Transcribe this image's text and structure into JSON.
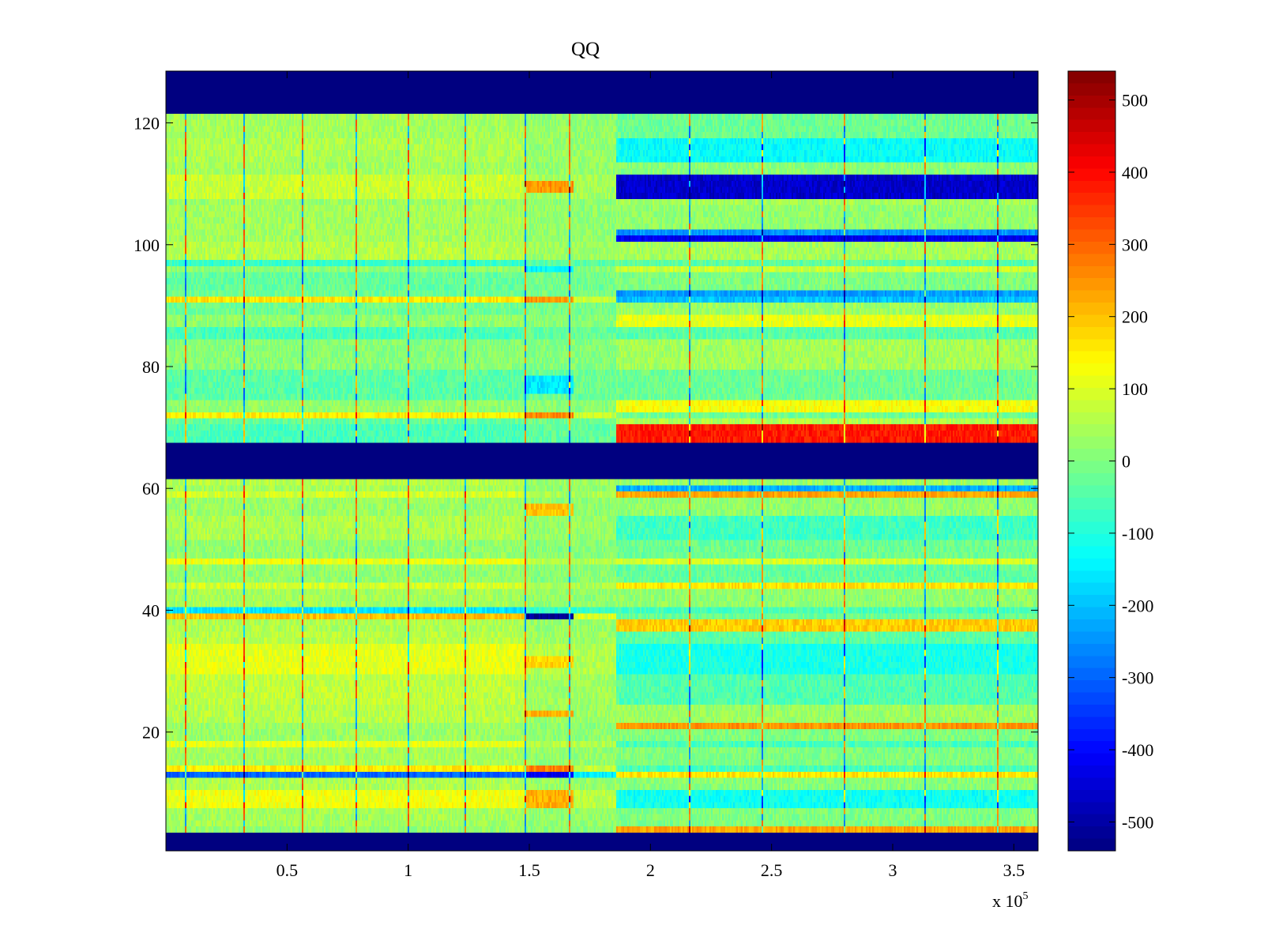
{
  "chart_data": {
    "type": "heatmap",
    "title": "QQ",
    "xlabel": "",
    "ylabel": "",
    "x_range": [
      0,
      360000
    ],
    "y_range": [
      0.5,
      128.5
    ],
    "rows": 128,
    "x_ticks": [
      {
        "value": 50000,
        "label": "0.5"
      },
      {
        "value": 100000,
        "label": "1"
      },
      {
        "value": 150000,
        "label": "1.5"
      },
      {
        "value": 200000,
        "label": "2"
      },
      {
        "value": 250000,
        "label": "2.5"
      },
      {
        "value": 300000,
        "label": "3"
      },
      {
        "value": 350000,
        "label": "3.5"
      }
    ],
    "x_multiplier": {
      "prefix": "x 10",
      "exponent": "5"
    },
    "y_ticks": [
      {
        "value": 20,
        "label": "20"
      },
      {
        "value": 40,
        "label": "40"
      },
      {
        "value": 60,
        "label": "60"
      },
      {
        "value": 80,
        "label": "80"
      },
      {
        "value": 100,
        "label": "100"
      },
      {
        "value": 120,
        "label": "120"
      }
    ],
    "colorbar": {
      "range": [
        -540,
        540
      ],
      "colormap": "jet",
      "ticks": [
        {
          "value": 500,
          "label": "500"
        },
        {
          "value": 400,
          "label": "400"
        },
        {
          "value": 300,
          "label": "300"
        },
        {
          "value": 200,
          "label": "200"
        },
        {
          "value": 100,
          "label": "100"
        },
        {
          "value": 0,
          "label": "0"
        },
        {
          "value": -100,
          "label": "-100"
        },
        {
          "value": -200,
          "label": "-200"
        },
        {
          "value": -300,
          "label": "-300"
        },
        {
          "value": -400,
          "label": "-400"
        },
        {
          "value": -500,
          "label": "-500"
        }
      ]
    },
    "regime_split_x": 186000,
    "spike_columns_x": [
      8000,
      32000,
      56000,
      78000,
      100000,
      123000,
      148000,
      166000,
      216000,
      246000,
      280000,
      313000,
      343000
    ],
    "masked_rows": [
      {
        "from": 1,
        "to": 3
      },
      {
        "from": 62,
        "to": 67
      },
      {
        "from": 122,
        "to": 128
      }
    ],
    "row_levels": [
      {
        "from": 4,
        "to": 4,
        "left": 20,
        "right": 230
      },
      {
        "from": 5,
        "to": 7,
        "left": 40,
        "right": 0
      },
      {
        "from": 8,
        "to": 10,
        "left": 120,
        "right": -120
      },
      {
        "from": 11,
        "to": 12,
        "left": 50,
        "right": 10
      },
      {
        "from": 13,
        "to": 13,
        "left": -300,
        "right": 160
      },
      {
        "from": 14,
        "to": 14,
        "left": 150,
        "right": -60
      },
      {
        "from": 15,
        "to": 17,
        "left": 40,
        "right": 0
      },
      {
        "from": 18,
        "to": 18,
        "left": 110,
        "right": -60
      },
      {
        "from": 19,
        "to": 20,
        "left": 30,
        "right": 0
      },
      {
        "from": 21,
        "to": 21,
        "left": 30,
        "right": 250
      },
      {
        "from": 22,
        "to": 24,
        "left": 60,
        "right": 30
      },
      {
        "from": 25,
        "to": 29,
        "left": 70,
        "right": -50
      },
      {
        "from": 30,
        "to": 34,
        "left": 110,
        "right": -110
      },
      {
        "from": 35,
        "to": 36,
        "left": 60,
        "right": -40
      },
      {
        "from": 37,
        "to": 38,
        "left": 50,
        "right": 190
      },
      {
        "from": 39,
        "to": 39,
        "left": 200,
        "right": -20
      },
      {
        "from": 40,
        "to": 40,
        "left": -160,
        "right": -60
      },
      {
        "from": 41,
        "to": 43,
        "left": 40,
        "right": 20
      },
      {
        "from": 44,
        "to": 44,
        "left": 90,
        "right": 160
      },
      {
        "from": 45,
        "to": 47,
        "left": 20,
        "right": -30
      },
      {
        "from": 48,
        "to": 48,
        "left": 120,
        "right": 90
      },
      {
        "from": 49,
        "to": 51,
        "left": 20,
        "right": -20
      },
      {
        "from": 52,
        "to": 55,
        "left": 50,
        "right": -70
      },
      {
        "from": 56,
        "to": 58,
        "left": 30,
        "right": 20
      },
      {
        "from": 59,
        "to": 59,
        "left": 90,
        "right": 230
      },
      {
        "from": 60,
        "to": 60,
        "left": 40,
        "right": -220
      },
      {
        "from": 61,
        "to": 61,
        "left": 60,
        "right": 30
      },
      {
        "from": 68,
        "to": 70,
        "left": -60,
        "right": 380
      },
      {
        "from": 71,
        "to": 71,
        "left": -30,
        "right": 50
      },
      {
        "from": 72,
        "to": 72,
        "left": 150,
        "right": -20
      },
      {
        "from": 73,
        "to": 74,
        "left": 20,
        "right": 130
      },
      {
        "from": 75,
        "to": 79,
        "left": -40,
        "right": -20
      },
      {
        "from": 80,
        "to": 84,
        "left": 10,
        "right": 40
      },
      {
        "from": 85,
        "to": 86,
        "left": -60,
        "right": -40
      },
      {
        "from": 87,
        "to": 88,
        "left": 20,
        "right": 110
      },
      {
        "from": 89,
        "to": 90,
        "left": -20,
        "right": 30
      },
      {
        "from": 91,
        "to": 91,
        "left": 160,
        "right": -200
      },
      {
        "from": 92,
        "to": 92,
        "left": -20,
        "right": -240
      },
      {
        "from": 93,
        "to": 95,
        "left": -30,
        "right": 0
      },
      {
        "from": 96,
        "to": 96,
        "left": 20,
        "right": 80
      },
      {
        "from": 97,
        "to": 97,
        "left": -80,
        "right": -40
      },
      {
        "from": 98,
        "to": 100,
        "left": 60,
        "right": 40
      },
      {
        "from": 101,
        "to": 101,
        "left": 40,
        "right": -420
      },
      {
        "from": 102,
        "to": 102,
        "left": 40,
        "right": -250
      },
      {
        "from": 103,
        "to": 106,
        "left": 40,
        "right": 20
      },
      {
        "from": 107,
        "to": 107,
        "left": 30,
        "right": 40
      },
      {
        "from": 108,
        "to": 111,
        "left": 80,
        "right": -460
      },
      {
        "from": 112,
        "to": 113,
        "left": 40,
        "right": 10
      },
      {
        "from": 114,
        "to": 117,
        "left": 50,
        "right": -130
      },
      {
        "from": 118,
        "to": 121,
        "left": 40,
        "right": -20
      }
    ],
    "transition_segment": {
      "x_from": 148000,
      "x_to": 186000,
      "blobs": [
        {
          "from": 8,
          "to": 10,
          "value": 220
        },
        {
          "from": 14,
          "to": 14,
          "value": 270
        },
        {
          "from": 13,
          "to": 13,
          "value": -420
        },
        {
          "from": 23,
          "to": 23,
          "value": 220
        },
        {
          "from": 31,
          "to": 32,
          "value": 180
        },
        {
          "from": 39,
          "to": 39,
          "value": -520
        },
        {
          "from": 56,
          "to": 57,
          "value": 200
        },
        {
          "from": 72,
          "to": 72,
          "value": 260
        },
        {
          "from": 76,
          "to": 78,
          "value": -160
        },
        {
          "from": 91,
          "to": 91,
          "value": 240
        },
        {
          "from": 96,
          "to": 96,
          "value": -140
        },
        {
          "from": 109,
          "to": 110,
          "value": 250
        }
      ]
    }
  }
}
